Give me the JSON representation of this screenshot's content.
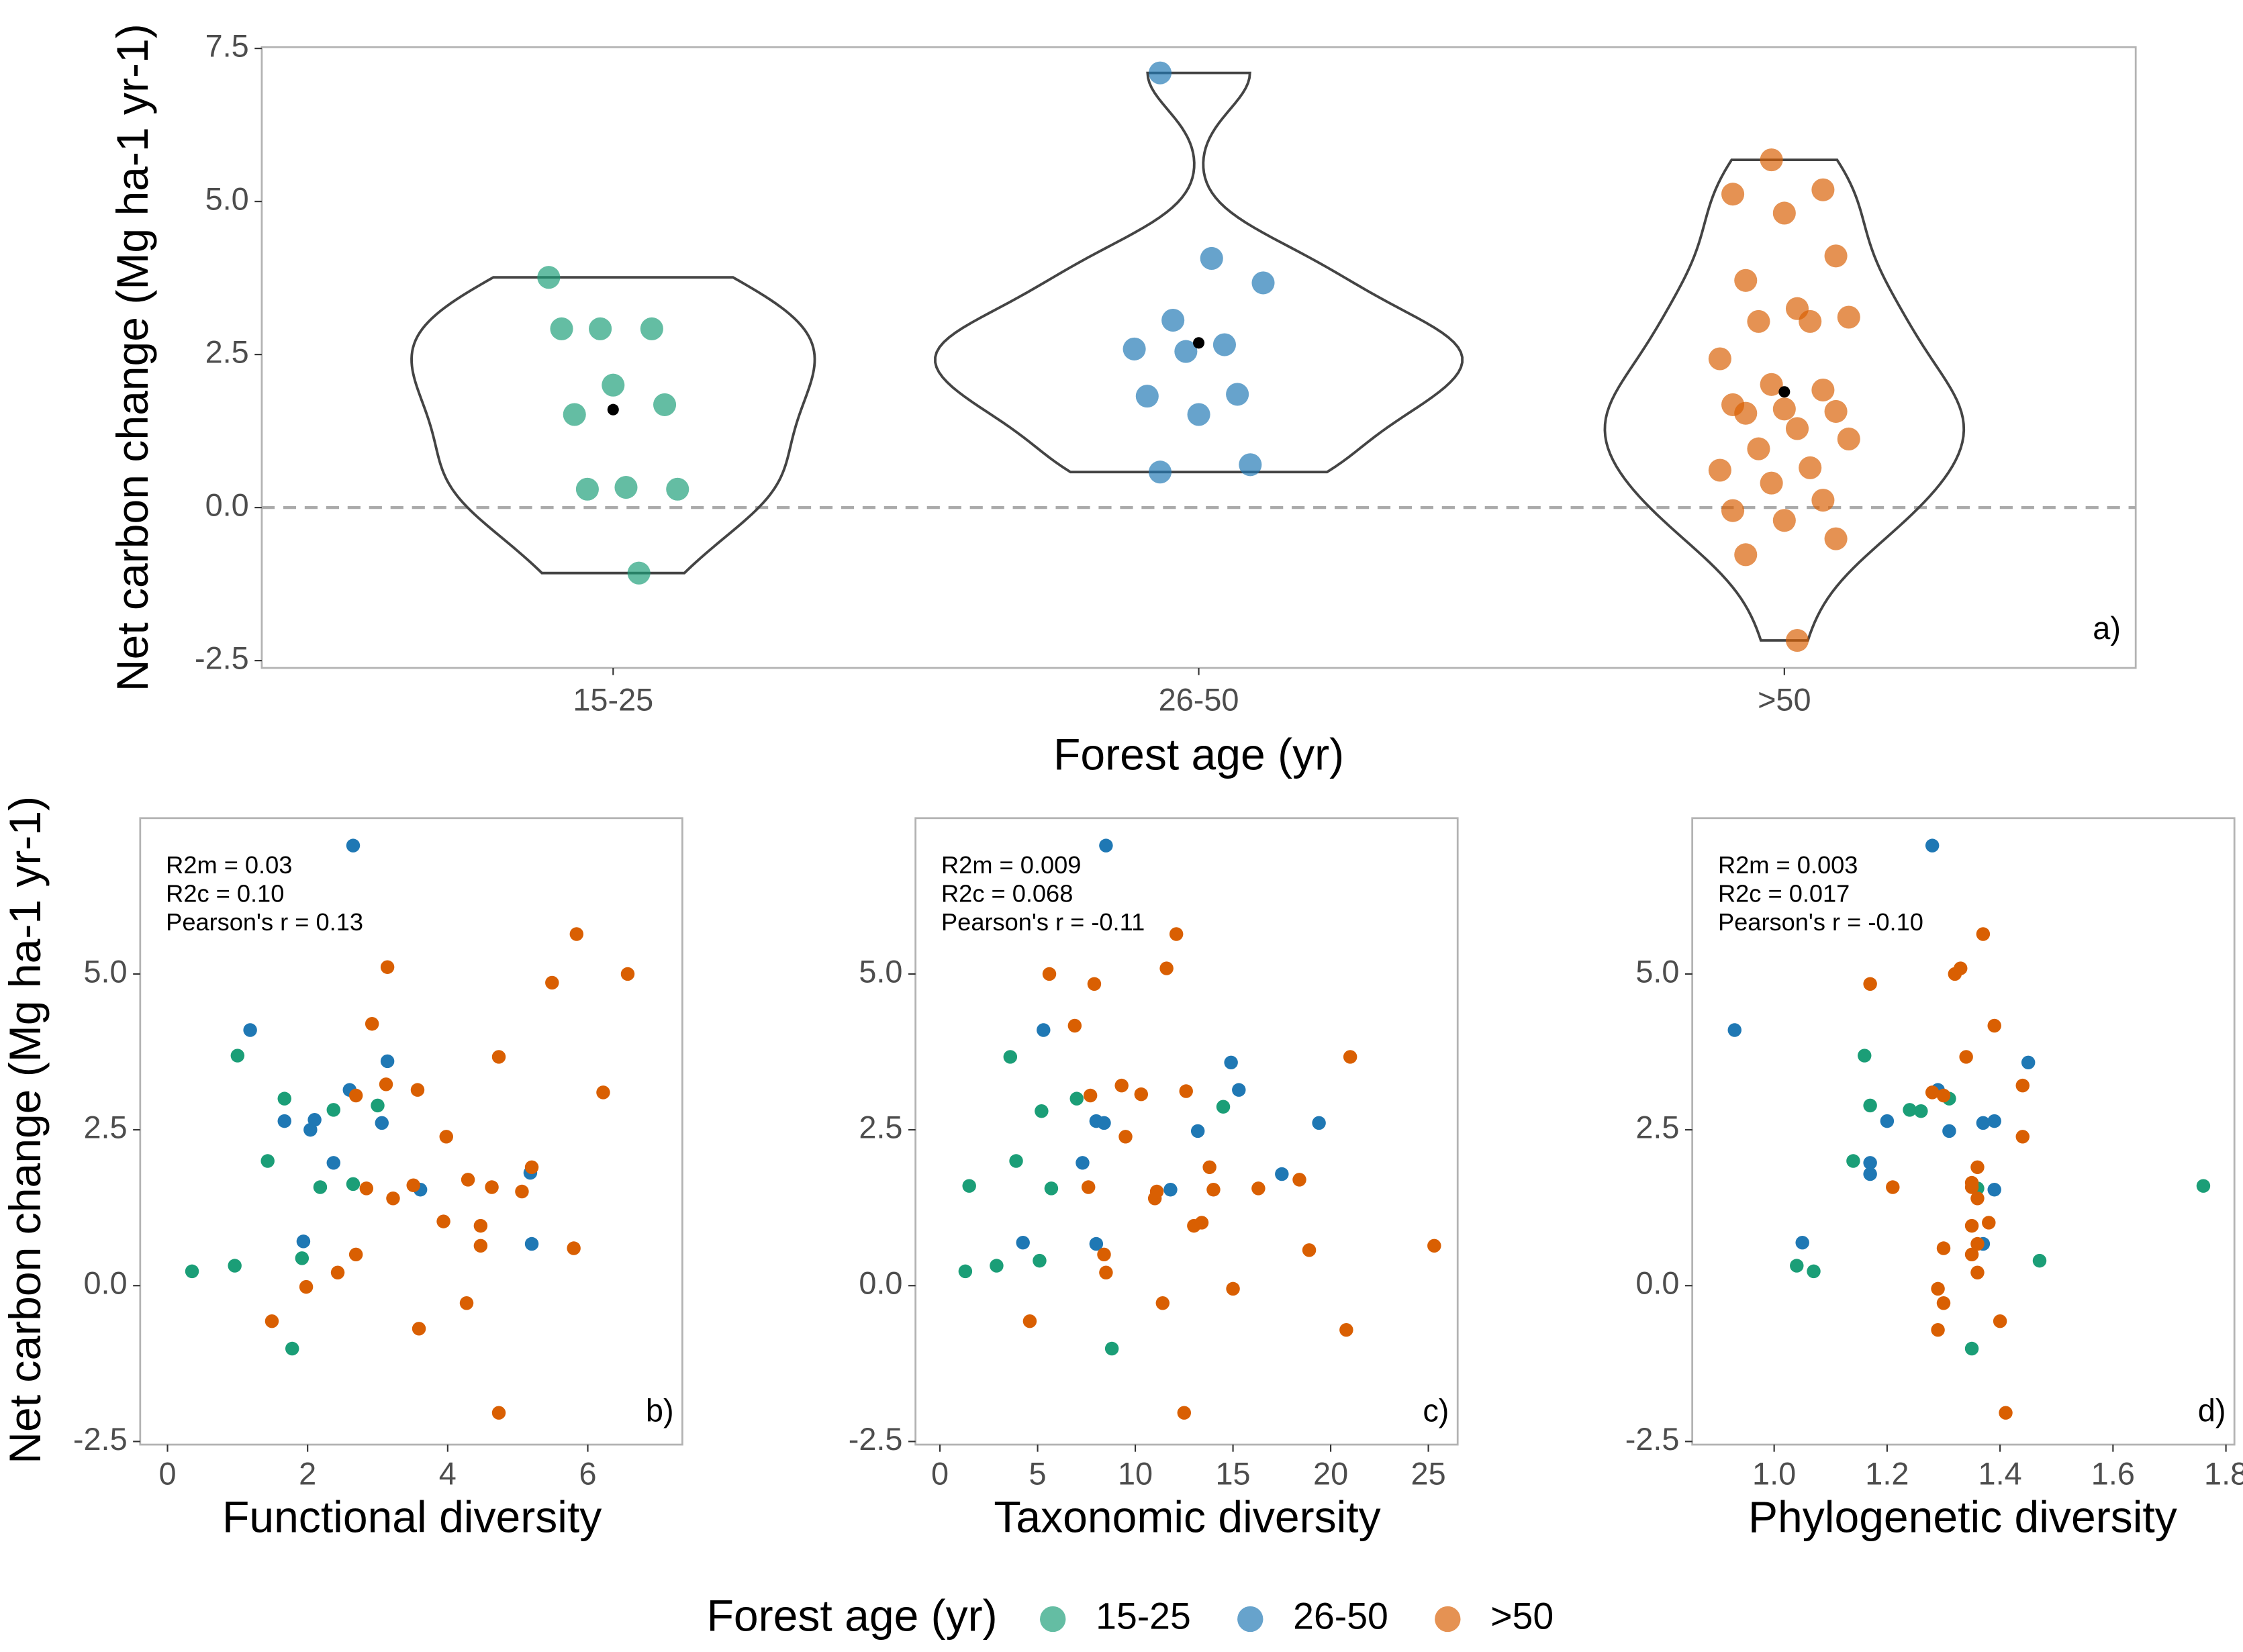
{
  "chart_data": [
    {
      "type": "violin",
      "ylabel": "Net carbon change (Mg ha-1 yr-1)",
      "xlabel": "Forest age (yr)",
      "legend_title": "Forest age (yr)",
      "panel_label": "a)",
      "categories": [
        "15-25",
        "26-50",
        ">50"
      ],
      "ylim": [
        -2.62,
        7.52
      ],
      "yticks": [
        -2.5,
        {
          "value": 0,
          "label": "0.0"
        },
        2.5,
        {
          "value": 5,
          "label": "5.0"
        },
        7.5
      ],
      "reference_line": 0,
      "series": [
        {
          "name": "15-25",
          "color": "#1b9e77",
          "mean": 1.6,
          "values": [
            3.76,
            2.92,
            2.92,
            2.92,
            2.0,
            1.68,
            1.52,
            0.33,
            0.3,
            0.3,
            -1.07
          ]
        },
        {
          "name": "26-50",
          "color": "#1f78b4",
          "mean": 2.69,
          "values": [
            7.1,
            4.07,
            3.67,
            3.06,
            2.66,
            2.59,
            2.55,
            1.85,
            1.82,
            1.52,
            0.7,
            0.58
          ]
        },
        {
          "name": ">50",
          "color": "#d95f02",
          "mean": 1.89,
          "values": [
            5.68,
            5.19,
            5.12,
            4.81,
            4.11,
            3.71,
            3.25,
            3.11,
            3.04,
            3.04,
            2.43,
            2.01,
            1.92,
            1.68,
            1.61,
            1.57,
            1.54,
            1.29,
            1.12,
            0.96,
            0.65,
            0.61,
            0.4,
            0.12,
            -0.05,
            -0.21,
            -0.51,
            -0.77,
            -2.17
          ]
        }
      ]
    },
    {
      "type": "scatter",
      "ylabel": "Net carbon change (Mg ha-1 yr-1)",
      "xlabel": "Functional diversity",
      "panel_label": "b)",
      "annotations": [
        "R2m = 0.03",
        "R2c = 0.10",
        "Pearson's r = 0.13"
      ],
      "xlim": [
        -0.39,
        7.35
      ],
      "xticks": [
        0,
        2,
        4,
        6
      ],
      "ylim": [
        -2.55,
        7.5
      ],
      "yticks": [
        -2.5,
        {
          "value": 0,
          "label": "0.0"
        },
        2.5,
        {
          "value": 5,
          "label": "5.0"
        }
      ],
      "series": [
        {
          "color": "#1b9e77",
          "x": [
            0.35,
            0.96,
            1.0,
            1.43,
            1.67,
            1.78,
            1.92,
            2.18,
            2.37,
            2.65,
            3.0
          ],
          "values": [
            0.23,
            0.32,
            3.69,
            2.0,
            3.0,
            -1.01,
            0.44,
            1.58,
            2.82,
            1.63,
            2.89
          ]
        },
        {
          "color": "#1f78b4",
          "x": [
            2.65,
            1.18,
            1.67,
            1.94,
            2.04,
            2.1,
            2.37,
            2.6,
            3.06,
            3.14,
            3.61,
            5.18,
            5.2
          ],
          "values": [
            7.06,
            4.1,
            2.64,
            0.71,
            2.5,
            2.66,
            1.97,
            3.14,
            2.61,
            3.6,
            1.54,
            1.81,
            0.67
          ]
        },
        {
          "color": "#d95f02",
          "x": [
            1.49,
            1.98,
            2.43,
            2.69,
            2.69,
            2.84,
            2.92,
            3.14,
            3.12,
            3.22,
            3.51,
            3.57,
            3.59,
            3.98,
            3.94,
            4.29,
            4.27,
            4.47,
            4.47,
            4.63,
            4.73,
            4.73,
            5.06,
            5.2,
            5.49,
            5.8,
            5.84,
            6.22,
            6.57
          ],
          "values": [
            -0.57,
            -0.02,
            0.21,
            0.5,
            3.05,
            1.56,
            4.2,
            5.11,
            3.23,
            1.4,
            1.61,
            3.14,
            -0.69,
            2.39,
            1.03,
            1.7,
            -0.28,
            0.96,
            0.64,
            1.58,
            3.67,
            -2.04,
            1.51,
            1.9,
            4.86,
            0.6,
            5.64,
            3.1,
            5.0
          ]
        }
      ]
    },
    {
      "type": "scatter",
      "xlabel": "Taxonomic diversity",
      "panel_label": "c)",
      "annotations": [
        "R2m = 0.009",
        "R2c = 0.068",
        "Pearson's r = -0.11"
      ],
      "xlim": [
        -1.25,
        26.5
      ],
      "xticks": [
        0,
        5,
        10,
        15,
        20,
        25
      ],
      "ylim": [
        -2.55,
        7.5
      ],
      "yticks": [
        -2.5,
        {
          "value": 0,
          "label": "0.0"
        },
        2.5,
        {
          "value": 5,
          "label": "5.0"
        }
      ],
      "series": [
        {
          "color": "#1b9e77",
          "x": [
            1.3,
            1.5,
            2.9,
            3.6,
            3.9,
            5.1,
            5.2,
            5.7,
            7.0,
            8.8,
            14.5
          ],
          "values": [
            0.23,
            1.6,
            0.32,
            3.67,
            2.0,
            0.4,
            2.8,
            1.56,
            3.0,
            -1.01,
            2.87
          ]
        },
        {
          "color": "#1f78b4",
          "x": [
            8.5,
            4.25,
            5.3,
            7.3,
            8.0,
            8.4,
            8.0,
            11.8,
            13.2,
            14.9,
            15.3,
            17.5,
            19.4
          ],
          "values": [
            7.06,
            0.69,
            4.1,
            1.97,
            2.64,
            2.61,
            0.67,
            1.54,
            2.48,
            3.58,
            3.14,
            1.79,
            2.61
          ]
        },
        {
          "color": "#d95f02",
          "x": [
            4.6,
            5.6,
            6.9,
            7.6,
            7.7,
            7.9,
            8.4,
            8.5,
            9.3,
            9.5,
            10.3,
            11.0,
            11.1,
            11.4,
            11.6,
            12.1,
            12.5,
            12.6,
            13.0,
            13.4,
            13.8,
            14.0,
            15.0,
            16.3,
            18.4,
            18.9,
            20.8,
            21.0,
            25.3
          ],
          "values": [
            -0.57,
            5.0,
            4.17,
            1.58,
            3.05,
            4.84,
            0.5,
            0.21,
            3.21,
            2.39,
            3.07,
            1.4,
            1.51,
            -0.28,
            5.09,
            5.64,
            -2.04,
            3.12,
            0.96,
            1.01,
            1.9,
            1.54,
            -0.05,
            1.56,
            1.7,
            0.57,
            -0.71,
            3.67,
            0.64
          ]
        }
      ]
    },
    {
      "type": "scatter",
      "xlabel": "Phylogenetic diversity",
      "panel_label": "d)",
      "annotations": [
        "R2m = 0.003",
        "R2c = 0.017",
        "Pearson's r = -0.10"
      ],
      "xlim": [
        0.855,
        1.815
      ],
      "xticks": [
        {
          "value": 1,
          "label": "1.0"
        },
        1.2,
        1.4,
        1.6,
        1.8
      ],
      "ylim": [
        -2.55,
        7.5
      ],
      "yticks": [
        -2.5,
        {
          "value": 0,
          "label": "0.0"
        },
        2.5,
        {
          "value": 5,
          "label": "5.0"
        }
      ],
      "series": [
        {
          "color": "#1b9e77",
          "x": [
            1.04,
            1.07,
            1.14,
            1.16,
            1.17,
            1.24,
            1.26,
            1.31,
            1.35,
            1.36,
            1.47,
            1.76
          ],
          "values": [
            0.32,
            0.23,
            2.0,
            3.69,
            2.89,
            2.82,
            2.8,
            3.0,
            -1.01,
            1.56,
            0.4,
            1.6
          ]
        },
        {
          "color": "#1f78b4",
          "x": [
            0.93,
            1.05,
            1.17,
            1.17,
            1.2,
            1.28,
            1.29,
            1.31,
            1.37,
            1.37,
            1.39,
            1.39,
            1.45
          ],
          "values": [
            4.1,
            0.69,
            1.97,
            1.79,
            2.64,
            7.06,
            3.14,
            2.48,
            2.61,
            0.67,
            2.64,
            1.54,
            3.58
          ]
        },
        {
          "color": "#d95f02",
          "x": [
            1.17,
            1.21,
            1.28,
            1.29,
            1.29,
            1.3,
            1.3,
            1.3,
            1.32,
            1.33,
            1.34,
            1.35,
            1.35,
            1.35,
            1.35,
            1.36,
            1.36,
            1.36,
            1.36,
            1.37,
            1.38,
            1.39,
            1.4,
            1.41,
            1.44,
            1.44
          ],
          "values": [
            4.84,
            1.58,
            3.1,
            -0.05,
            -0.71,
            0.6,
            3.05,
            -0.28,
            5.0,
            5.09,
            3.67,
            0.96,
            1.58,
            1.65,
            0.5,
            0.67,
            0.21,
            1.4,
            1.9,
            5.64,
            1.01,
            4.17,
            -0.57,
            -2.04,
            3.21,
            2.39
          ]
        }
      ]
    }
  ]
}
